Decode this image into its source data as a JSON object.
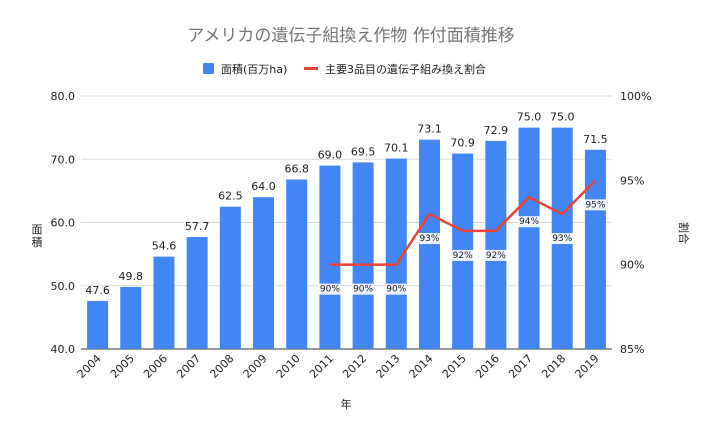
{
  "chart_data": {
    "type": "bar",
    "title": "アメリカの遺伝子組換え作物 作付面積推移",
    "categories": [
      "2004",
      "2005",
      "2006",
      "2007",
      "2008",
      "2009",
      "2010",
      "2011",
      "2012",
      "2013",
      "2014",
      "2015",
      "2016",
      "2017",
      "2018",
      "2019"
    ],
    "series": [
      {
        "name": "面積(百万ha)",
        "type": "bar",
        "axis": "left",
        "color": "#4285F4",
        "values": [
          47.6,
          49.8,
          54.6,
          57.7,
          62.5,
          64.0,
          66.8,
          69.0,
          69.5,
          70.1,
          73.1,
          70.9,
          72.9,
          75.0,
          75.0,
          71.5
        ],
        "labels": [
          "47.6",
          "49.8",
          "54.6",
          "57.7",
          "62.5",
          "64.0",
          "66.8",
          "69.0",
          "69.5",
          "70.1",
          "73.1",
          "70.9",
          "72.9",
          "75.0",
          "75.0",
          "71.5"
        ]
      },
      {
        "name": "主要3品目の遺伝子組み換え割合",
        "type": "line",
        "axis": "right",
        "color": "#EA4335",
        "values": [
          null,
          null,
          null,
          null,
          null,
          null,
          null,
          90,
          90,
          90,
          93,
          92,
          92,
          94,
          93,
          95
        ],
        "labels": [
          "",
          "",
          "",
          "",
          "",
          "",
          "",
          "90%",
          "90%",
          "90%",
          "93%",
          "92%",
          "92%",
          "94%",
          "93%",
          "95%"
        ]
      }
    ],
    "xlabel": "年",
    "ylabel": "面積",
    "y2label": "割合",
    "ylim": [
      40,
      80
    ],
    "yticks": [
      "40.0",
      "50.0",
      "60.0",
      "70.0",
      "80.0"
    ],
    "y2lim": [
      85,
      100
    ],
    "y2ticks": [
      "85%",
      "90%",
      "95%",
      "100%"
    ],
    "legend_position": "top"
  }
}
